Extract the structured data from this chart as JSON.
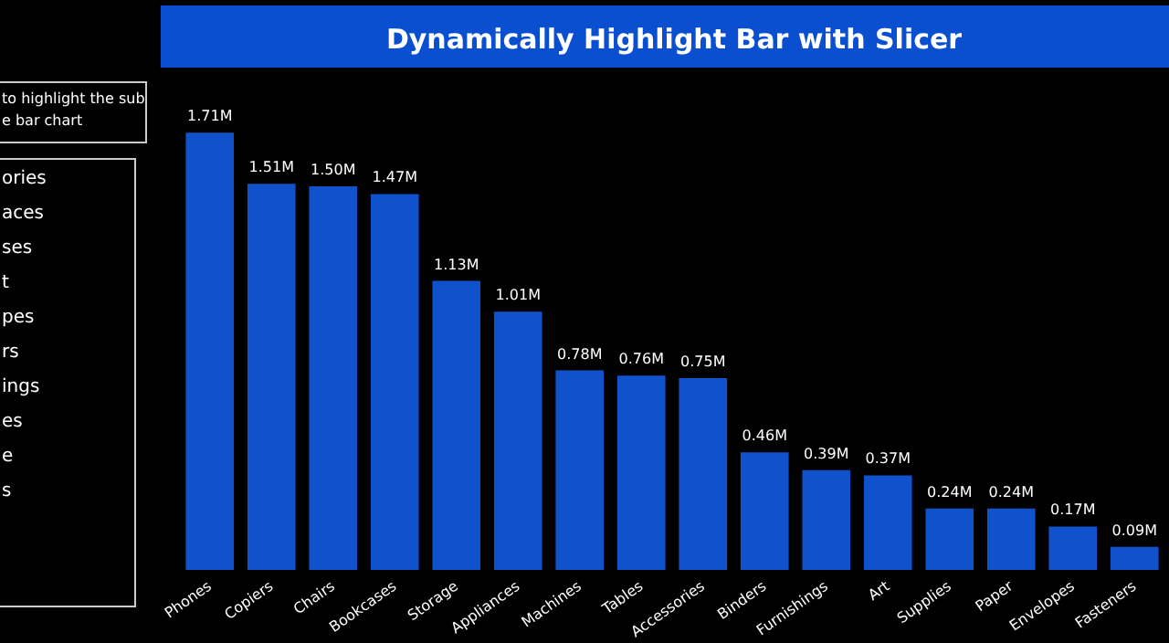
{
  "chart_data": {
    "type": "bar",
    "title": "Dynamically Highlight Bar with Slicer",
    "categories": [
      "Phones",
      "Copiers",
      "Chairs",
      "Bookcases",
      "Storage",
      "Appliances",
      "Machines",
      "Tables",
      "Accessories",
      "Binders",
      "Furnishings",
      "Art",
      "Supplies",
      "Paper",
      "Envelopes",
      "Fasteners"
    ],
    "values": [
      1.71,
      1.51,
      1.5,
      1.47,
      1.13,
      1.01,
      0.78,
      0.76,
      0.75,
      0.46,
      0.39,
      0.37,
      0.24,
      0.24,
      0.17,
      0.09
    ],
    "value_labels": [
      "1.71M",
      "1.51M",
      "1.50M",
      "1.47M",
      "1.13M",
      "1.01M",
      "0.78M",
      "0.76M",
      "0.75M",
      "0.46M",
      "0.39M",
      "0.37M",
      "0.24M",
      "0.24M",
      "0.17M",
      "0.09M"
    ],
    "color": "#0f52cc",
    "annotations": [
      "to highlight the sub",
      "e bar chart",
      "ories",
      "aces",
      "ses",
      "t",
      "pes",
      "rs",
      "ings",
      "es",
      "e",
      "s"
    ]
  }
}
